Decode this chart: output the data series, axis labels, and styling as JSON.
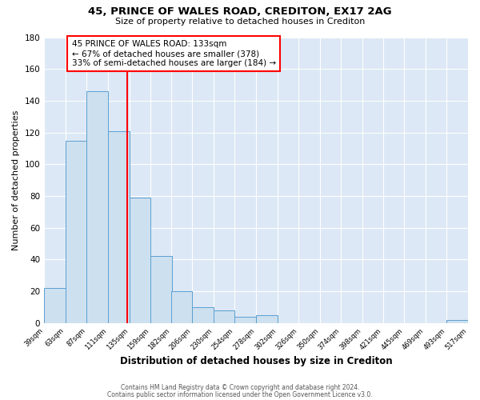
{
  "title": "45, PRINCE OF WALES ROAD, CREDITON, EX17 2AG",
  "subtitle": "Size of property relative to detached houses in Crediton",
  "xlabel": "Distribution of detached houses by size in Crediton",
  "ylabel": "Number of detached properties",
  "footer_line1": "Contains HM Land Registry data © Crown copyright and database right 2024.",
  "footer_line2": "Contains public sector information licensed under the Open Government Licence v3.0.",
  "bin_edges": [
    39,
    63,
    87,
    111,
    135,
    159,
    182,
    206,
    230,
    254,
    278,
    302,
    326,
    350,
    374,
    398,
    421,
    445,
    469,
    493,
    517
  ],
  "bin_heights": [
    22,
    115,
    146,
    121,
    79,
    42,
    20,
    10,
    8,
    4,
    5,
    0,
    0,
    0,
    0,
    0,
    0,
    0,
    0,
    2
  ],
  "bar_color": "#cde0f0",
  "bar_edge_color": "#5b9fd0",
  "property_size": 133,
  "vline_color": "red",
  "annotation_text": "45 PRINCE OF WALES ROAD: 133sqm\n← 67% of detached houses are smaller (378)\n33% of semi-detached houses are larger (184) →",
  "annotation_box_color": "white",
  "annotation_box_edge_color": "red",
  "ylim": [
    0,
    180
  ],
  "yticks": [
    0,
    20,
    40,
    60,
    80,
    100,
    120,
    140,
    160,
    180
  ],
  "tick_labels": [
    "39sqm",
    "63sqm",
    "87sqm",
    "111sqm",
    "135sqm",
    "159sqm",
    "182sqm",
    "206sqm",
    "230sqm",
    "254sqm",
    "278sqm",
    "302sqm",
    "326sqm",
    "350sqm",
    "374sqm",
    "398sqm",
    "421sqm",
    "445sqm",
    "469sqm",
    "493sqm",
    "517sqm"
  ],
  "figure_background_color": "#ffffff",
  "plot_background_color": "#dce8f5",
  "grid_color": "#ffffff",
  "title_fontsize": 9.5,
  "subtitle_fontsize": 8.0,
  "xlabel_fontsize": 8.5,
  "ylabel_fontsize": 8.0,
  "tick_fontsize": 6.0,
  "footer_fontsize": 5.5,
  "annotation_fontsize": 7.5
}
